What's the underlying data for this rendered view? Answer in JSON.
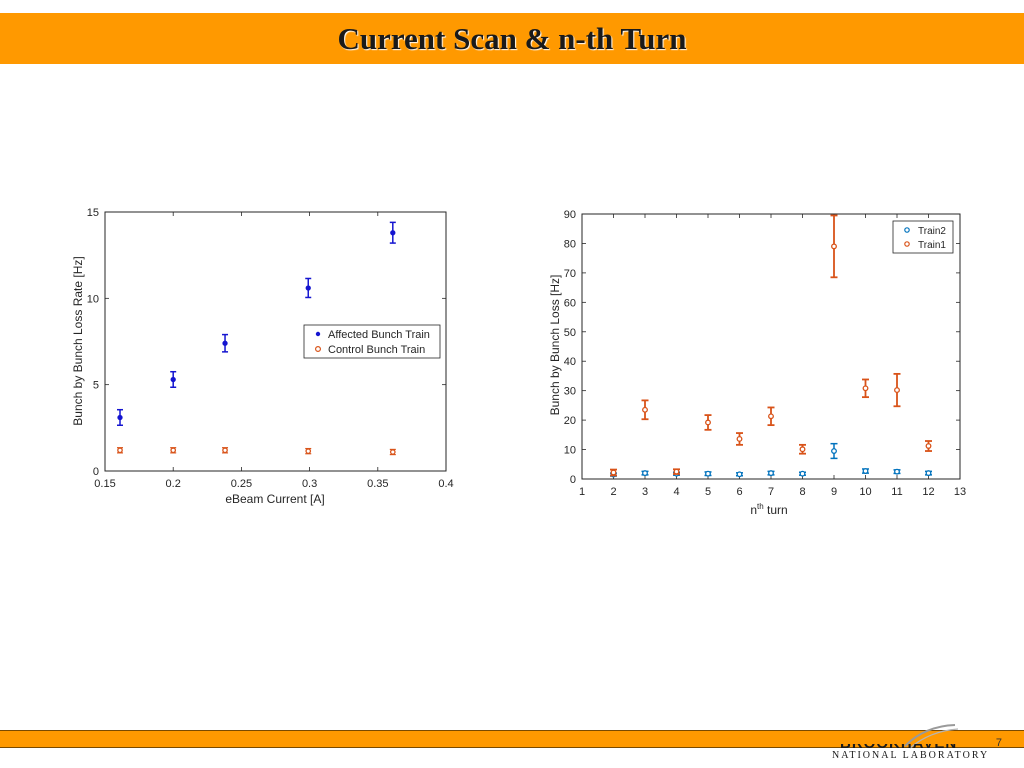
{
  "slide": {
    "title": "Current Scan & n-th Turn",
    "page_number": "7",
    "logo": {
      "name": "BROOKHAVEN",
      "subtitle": "NATIONAL LABORATORY"
    },
    "colors": {
      "header": "#ff9900",
      "affected": "#1515d0",
      "control": "#d9541a",
      "train2": "#0072bd",
      "train1": "#d95319"
    }
  },
  "chart_data": [
    {
      "type": "scatter",
      "title": "",
      "xlabel": "eBeam Current  [A]",
      "ylabel": "Bunch by Bunch Loss Rate [Hz]",
      "xlim": [
        0.15,
        0.4
      ],
      "ylim": [
        0,
        15
      ],
      "xticks": [
        "0.15",
        "0.2",
        "0.25",
        "0.3",
        "0.35",
        "0.4"
      ],
      "yticks": [
        "0",
        "5",
        "10",
        "15"
      ],
      "legend_position": "center-right",
      "series": [
        {
          "name": "Affected Bunch Train",
          "marker": "dot",
          "x": [
            0.161,
            0.2,
            0.238,
            0.299,
            0.361
          ],
          "y": [
            3.1,
            5.3,
            7.4,
            10.6,
            13.8
          ],
          "err": [
            0.45,
            0.45,
            0.5,
            0.55,
            0.6
          ]
        },
        {
          "name": "Control Bunch Train",
          "marker": "circle",
          "x": [
            0.161,
            0.2,
            0.238,
            0.299,
            0.361
          ],
          "y": [
            1.2,
            1.2,
            1.2,
            1.15,
            1.1
          ],
          "err": [
            0.15,
            0.15,
            0.15,
            0.15,
            0.15
          ]
        }
      ]
    },
    {
      "type": "scatter",
      "title": "",
      "xlabel_main": "n",
      "xlabel_sup": "th",
      "xlabel_rest": " turn",
      "ylabel": "Bunch by Bunch Loss [Hz]",
      "xlim": [
        1,
        13
      ],
      "ylim": [
        0,
        90
      ],
      "xticks": [
        "1",
        "2",
        "3",
        "4",
        "5",
        "6",
        "7",
        "8",
        "9",
        "10",
        "11",
        "12",
        "13"
      ],
      "yticks": [
        "0",
        "10",
        "20",
        "30",
        "40",
        "50",
        "60",
        "70",
        "80",
        "90"
      ],
      "legend_position": "top-right",
      "series": [
        {
          "name": "Train2",
          "marker": "circle",
          "x": [
            2,
            3,
            4,
            5,
            6,
            7,
            8,
            9,
            10,
            11,
            12
          ],
          "y": [
            1.5,
            2,
            1.8,
            1.8,
            1.6,
            2,
            1.8,
            9.5,
            2.7,
            2.5,
            2
          ],
          "err": [
            0.5,
            0.6,
            0.5,
            0.6,
            0.5,
            0.6,
            0.5,
            2.5,
            0.7,
            0.6,
            0.6
          ]
        },
        {
          "name": "Train1",
          "marker": "circle",
          "x": [
            2,
            3,
            4,
            5,
            6,
            7,
            8,
            9,
            10,
            11,
            12
          ],
          "y": [
            2.2,
            23.5,
            2.5,
            19.2,
            13.6,
            21.3,
            10.1,
            79,
            30.8,
            30.2,
            11.2
          ],
          "err": [
            1,
            3.2,
            0.8,
            2.5,
            2,
            3,
            1.5,
            10.5,
            3,
            5.5,
            1.7
          ]
        }
      ]
    }
  ]
}
